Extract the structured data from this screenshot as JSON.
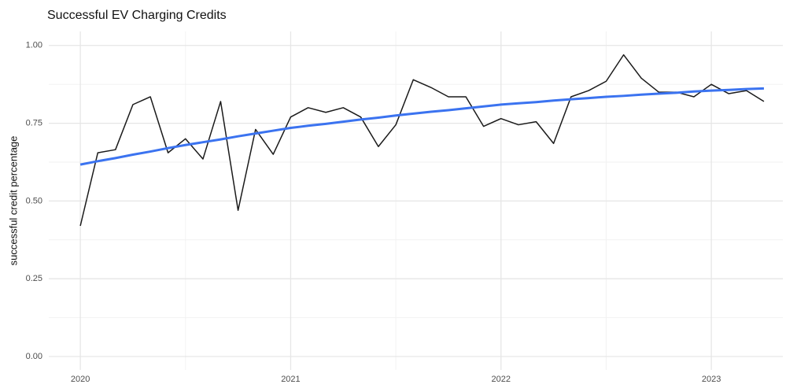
{
  "chart_data": {
    "type": "line",
    "title": "Successful EV Charging Credits",
    "y_label": "successful credit percentage",
    "x": [
      2020,
      2020.083,
      2020.167,
      2020.25,
      2020.333,
      2020.417,
      2020.5,
      2020.583,
      2020.667,
      2020.75,
      2020.833,
      2020.917,
      2021,
      2021.083,
      2021.167,
      2021.25,
      2021.333,
      2021.417,
      2021.5,
      2021.583,
      2021.667,
      2021.75,
      2021.833,
      2021.917,
      2022,
      2022.083,
      2022.167,
      2022.25,
      2022.333,
      2022.417,
      2022.5,
      2022.583,
      2022.667,
      2022.75,
      2022.833,
      2022.917,
      2023,
      2023.083,
      2023.167,
      2023.25
    ],
    "series": [
      {
        "color": "#1a1a1a",
        "values": [
          0.42,
          0.655,
          0.665,
          0.81,
          0.835,
          0.655,
          0.7,
          0.635,
          0.82,
          0.47,
          0.73,
          0.65,
          0.77,
          0.8,
          0.785,
          0.8,
          0.77,
          0.675,
          0.745,
          0.89,
          0.865,
          0.835,
          0.835,
          0.74,
          0.765,
          0.745,
          0.755,
          0.685,
          0.835,
          0.855,
          0.885,
          0.97,
          0.895,
          0.85,
          0.85,
          0.835,
          0.875,
          0.845,
          0.855,
          0.82
        ]
      },
      {
        "color": "#3b73f0",
        "values": [
          0.617,
          0.628,
          0.638,
          0.649,
          0.659,
          0.67,
          0.68,
          0.689,
          0.698,
          0.708,
          0.717,
          0.726,
          0.735,
          0.742,
          0.748,
          0.755,
          0.762,
          0.768,
          0.775,
          0.781,
          0.787,
          0.792,
          0.798,
          0.804,
          0.81,
          0.814,
          0.818,
          0.823,
          0.827,
          0.831,
          0.835,
          0.838,
          0.842,
          0.845,
          0.848,
          0.852,
          0.855,
          0.857,
          0.86,
          0.862
        ]
      }
    ],
    "xlim": [
      2019.85,
      2023.34
    ],
    "xticks": [
      2020,
      2021,
      2022,
      2023
    ],
    "ylim": [
      -0.043,
      1.045
    ],
    "yticks": [
      {
        "value": 0,
        "label": "0.00"
      },
      {
        "value": 0.25,
        "label": "0.25"
      },
      {
        "value": 0.5,
        "label": "0.50"
      },
      {
        "value": 0.75,
        "label": "0.75"
      },
      {
        "value": 1,
        "label": "1.00"
      }
    ],
    "grid": true
  }
}
